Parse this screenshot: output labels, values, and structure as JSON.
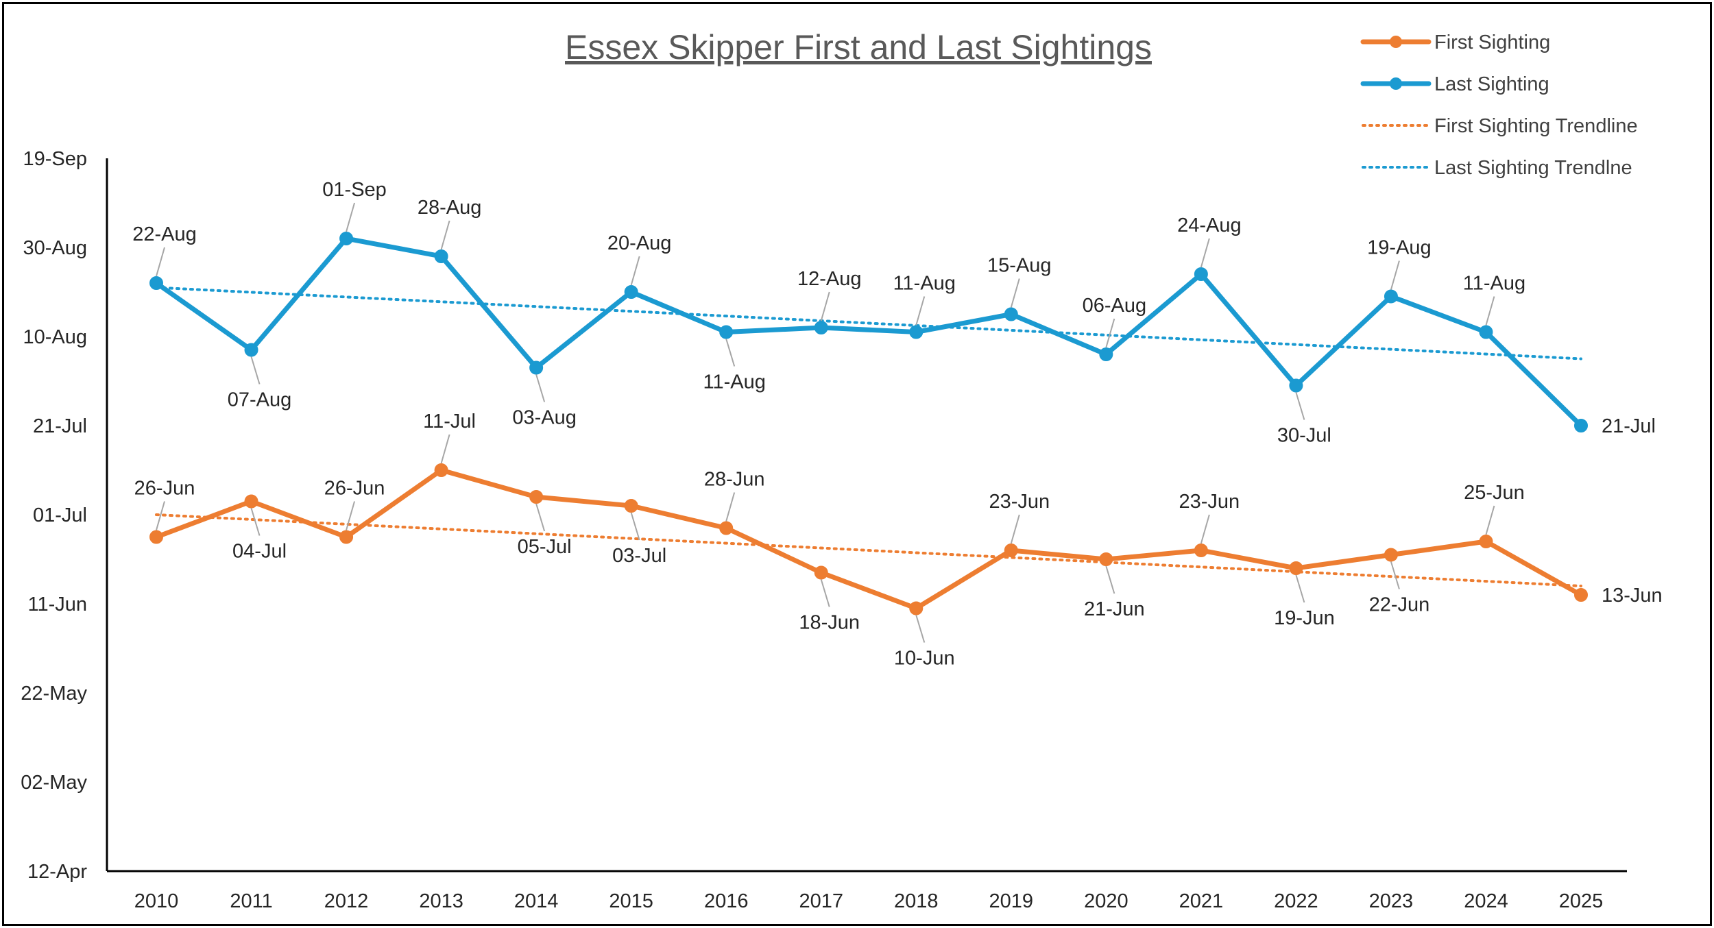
{
  "chart_data": {
    "type": "line",
    "title": "Essex Skipper First and Last Sightings",
    "xlabel": "",
    "ylabel": "",
    "categories": [
      "2010",
      "2011",
      "2012",
      "2013",
      "2014",
      "2015",
      "2016",
      "2017",
      "2018",
      "2019",
      "2020",
      "2021",
      "2022",
      "2023",
      "2024",
      "2025"
    ],
    "y_axis": {
      "scale": "date (day of year)",
      "ticks": [
        "12-Apr",
        "02-May",
        "22-May",
        "11-Jun",
        "01-Jul",
        "21-Jul",
        "10-Aug",
        "30-Aug",
        "19-Sep"
      ],
      "ylim": [
        "12-Apr",
        "19-Sep"
      ]
    },
    "grid": false,
    "legend_position": "top-right",
    "series": [
      {
        "name": "First Sighting",
        "color": "#ED7D31",
        "values": [
          "26-Jun",
          "04-Jul",
          "26-Jun",
          "11-Jul",
          "05-Jul",
          "03-Jul",
          "28-Jun",
          "18-Jun",
          "10-Jun",
          "23-Jun",
          "21-Jun",
          "23-Jun",
          "19-Jun",
          "22-Jun",
          "25-Jun",
          "13-Jun"
        ],
        "label_placement": [
          "above",
          "below",
          "above",
          "above",
          "below",
          "below",
          "above",
          "below",
          "below",
          "above",
          "below",
          "above",
          "below",
          "below",
          "above",
          "right"
        ]
      },
      {
        "name": "Last Sighting",
        "color": "#1B9AD1",
        "values": [
          "22-Aug",
          "07-Aug",
          "01-Sep",
          "28-Aug",
          "03-Aug",
          "20-Aug",
          "11-Aug",
          "12-Aug",
          "11-Aug",
          "15-Aug",
          "06-Aug",
          "24-Aug",
          "30-Jul",
          "19-Aug",
          "11-Aug",
          "21-Jul"
        ],
        "label_placement": [
          "above",
          "below",
          "above",
          "above",
          "below",
          "above",
          "below",
          "above",
          "above",
          "above",
          "above",
          "above",
          "below",
          "above",
          "above",
          "right"
        ]
      }
    ],
    "trendlines": [
      {
        "name": "First Sighting Trendline",
        "color": "#ED7D31",
        "style": "dotted",
        "start": "01-Jul",
        "end": "15-Jun"
      },
      {
        "name": "Last Sighting Trendlne",
        "color": "#1B9AD1",
        "style": "dotted",
        "start": "21-Aug",
        "end": "05-Aug"
      }
    ],
    "legend": [
      "First Sighting",
      "Last Sighting",
      "First Sighting Trendline",
      "Last Sighting Trendlne"
    ]
  }
}
